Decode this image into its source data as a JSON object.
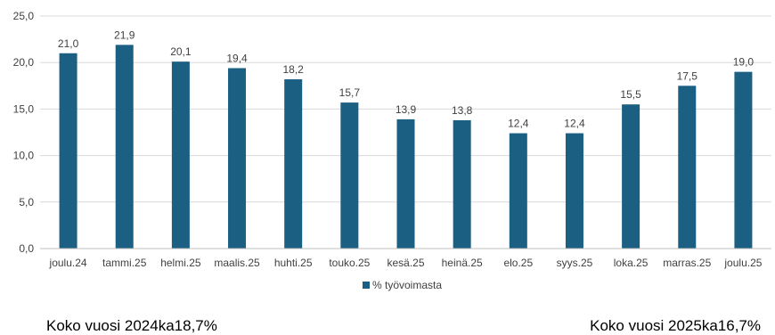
{
  "chart_data": {
    "type": "bar",
    "categories": [
      "joulu.24",
      "tammi.25",
      "helmi.25",
      "maalis.25",
      "huhti.25",
      "touko.25",
      "kesä.25",
      "heinä.25",
      "elo.25",
      "syys.25",
      "loka.25",
      "marras.25",
      "joulu.25"
    ],
    "series": [
      {
        "name": "% työvoimasta",
        "values": [
          21.0,
          21.9,
          20.1,
          19.4,
          18.2,
          15.7,
          13.9,
          13.8,
          12.4,
          12.4,
          15.5,
          17.5,
          19.0
        ],
        "labels": [
          "21,0",
          "21,9",
          "20,1",
          "19,4",
          "18,2",
          "15,7",
          "13,9",
          "13,8",
          "12,4",
          "12,4",
          "15,5",
          "17,5",
          "19,0"
        ]
      }
    ],
    "ylim": [
      0,
      25
    ],
    "yticks": [
      0,
      5,
      10,
      15,
      20,
      25
    ],
    "ytick_labels": [
      "0,0",
      "5,0",
      "10,0",
      "15,0",
      "20,0",
      "25,0"
    ],
    "grid": true,
    "legend": "bottom",
    "bar_color": "#1b5f82",
    "title": "",
    "xlabel": "",
    "ylabel": ""
  },
  "summary": {
    "left": "Koko vuosi 2024ka18,7%",
    "right": "Koko vuosi 2025ka16,7%"
  }
}
